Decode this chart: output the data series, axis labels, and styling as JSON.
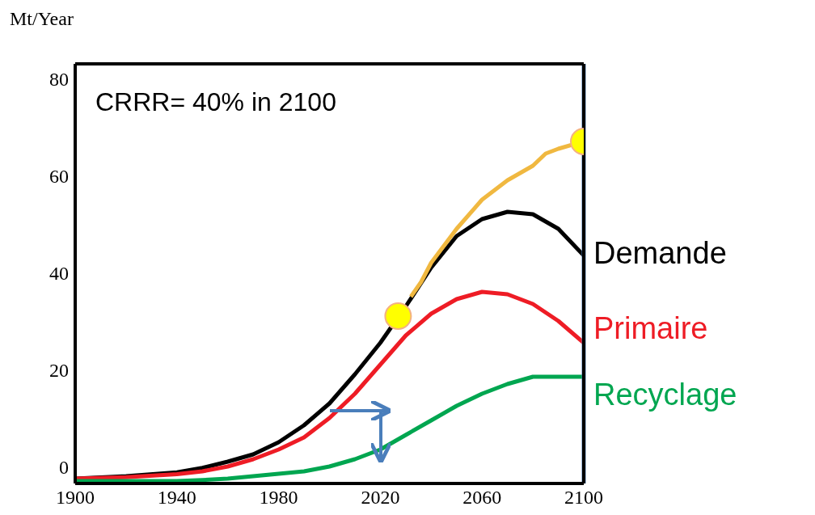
{
  "chart_data": {
    "type": "line",
    "ylabel": "Mt/Year",
    "annotations": [
      "CRRR= 40% in 2100"
    ],
    "xlim": [
      1900,
      2100
    ],
    "xticks": [
      1900,
      1940,
      1980,
      2020,
      2060,
      2100
    ],
    "ylim": [
      -3.5,
      83
    ],
    "yticks": [
      0,
      20,
      40,
      60,
      80
    ],
    "grid": false,
    "marker": "none",
    "line_style": "solid",
    "ref_lines": [
      {
        "axis": "x",
        "value": 2100,
        "color": "#4a7ebb"
      }
    ],
    "series": [
      {
        "name": "Demande",
        "color": "#000000",
        "x": [
          1900,
          1920,
          1940,
          1950,
          1960,
          1970,
          1980,
          1990,
          2000,
          2010,
          2020,
          2030,
          2040,
          2050,
          2060,
          2070,
          2080,
          2090,
          2100
        ],
        "values": [
          -2.5,
          -2,
          -1.2,
          -0.3,
          1,
          2.5,
          5,
          8.5,
          13,
          19,
          25.5,
          33,
          41,
          47.5,
          51,
          52.5,
          52,
          49,
          43.5
        ]
      },
      {
        "name": "Primaire",
        "color": "#ee1c25",
        "x": [
          1900,
          1920,
          1940,
          1950,
          1960,
          1970,
          1980,
          1990,
          2000,
          2010,
          2020,
          2030,
          2040,
          2050,
          2060,
          2070,
          2080,
          2090,
          2100
        ],
        "values": [
          -2.5,
          -2.2,
          -1.6,
          -1,
          0,
          1.5,
          3.5,
          6,
          10,
          15,
          21,
          27,
          31.5,
          34.5,
          36,
          35.5,
          33.5,
          30,
          25.5
        ]
      },
      {
        "name": "Recyclage",
        "color": "#00a650",
        "x": [
          1900,
          1920,
          1940,
          1950,
          1960,
          1970,
          1980,
          1990,
          2000,
          2010,
          2020,
          2030,
          2040,
          2050,
          2060,
          2070,
          2080,
          2090,
          2100
        ],
        "values": [
          -3,
          -3,
          -3,
          -2.8,
          -2.5,
          -2,
          -1.5,
          -1,
          0,
          1.5,
          3.5,
          6.5,
          9.5,
          12.5,
          15,
          17,
          18.5,
          18.5,
          18.5
        ]
      },
      {
        "type": "scatter",
        "marker": "circle",
        "color": "#ffff00",
        "x": [
          2027,
          2100
        ],
        "values": [
          31,
          67
        ]
      },
      {
        "color": "#f0b840",
        "x": [
          2032,
          2036,
          2040,
          2050,
          2060,
          2070,
          2080,
          2085,
          2090,
          2100
        ],
        "values": [
          35,
          38,
          42,
          49,
          55,
          59,
          62,
          64.5,
          65.5,
          67
        ]
      }
    ]
  }
}
